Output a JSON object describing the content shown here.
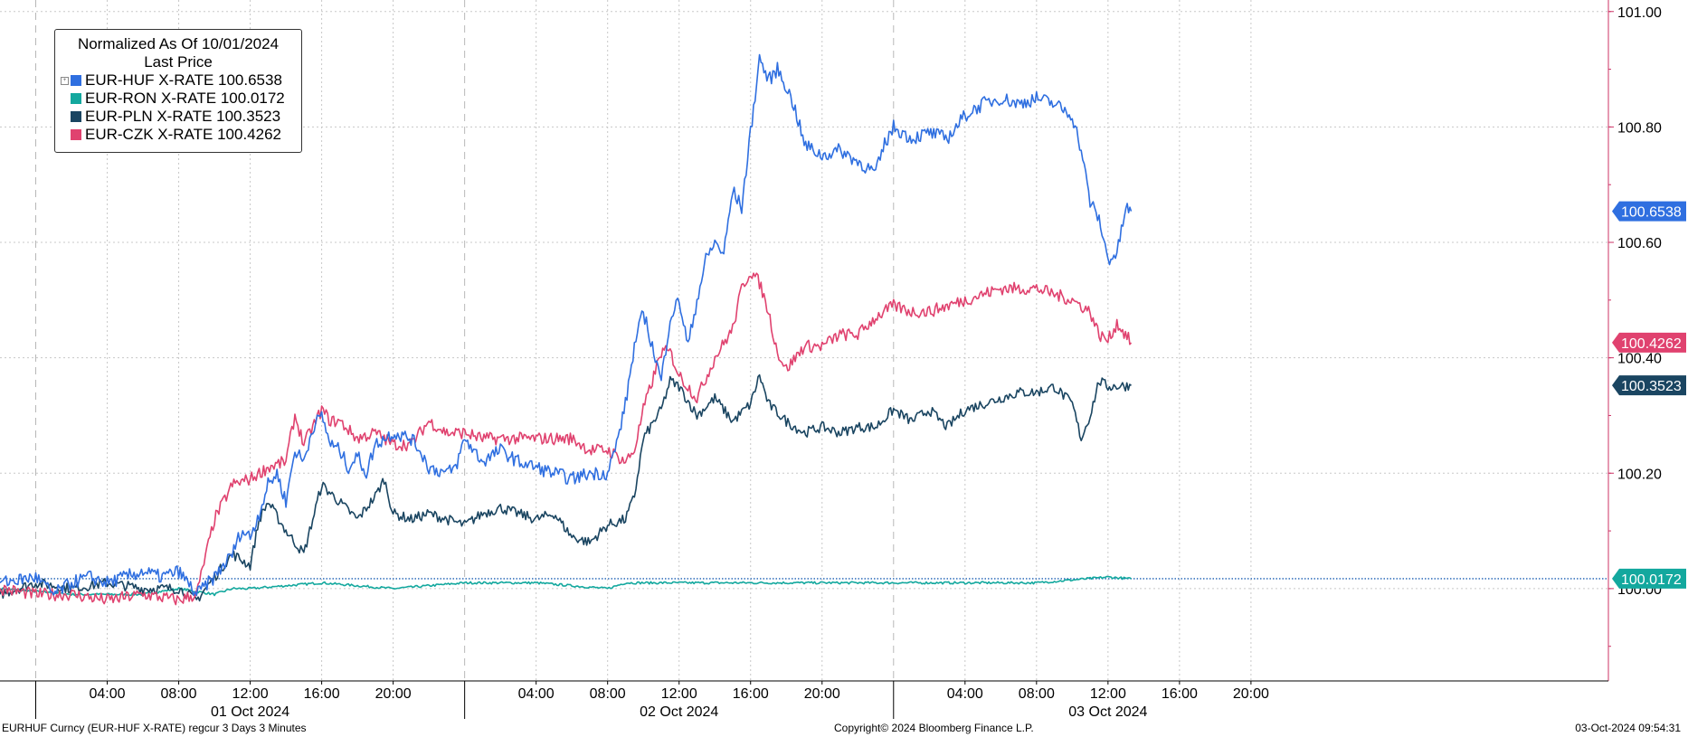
{
  "chart_data": {
    "type": "line",
    "legend": {
      "title": "Normalized As Of 10/01/2024",
      "subtitle": "Last Price",
      "entries": [
        {
          "label": "EUR-HUF X-RATE 100.6538",
          "color": "#2f6fe0"
        },
        {
          "label": "EUR-RON X-RATE 100.0172",
          "color": "#13a89e"
        },
        {
          "label": "EUR-PLN X-RATE 100.3523",
          "color": "#1a4561"
        },
        {
          "label": "EUR-CZK X-RATE 100.4262",
          "color": "#e0426f"
        }
      ],
      "placement": "top-left"
    },
    "y_axis": {
      "side": "right",
      "ylim": [
        99.84,
        101.02
      ],
      "ticks": [
        100.0,
        100.2,
        100.4,
        100.6,
        100.8,
        101.0
      ],
      "tick_labels": [
        "100.00",
        "100.20",
        "100.40",
        "100.60",
        "100.80",
        "101.00"
      ]
    },
    "x_axis": {
      "unit": "hours since 00:00 01 Oct 2024",
      "xlim": [
        -2,
        88
      ],
      "time_ticks": [
        {
          "x": 4,
          "label": "04:00"
        },
        {
          "x": 8,
          "label": "08:00"
        },
        {
          "x": 12,
          "label": "12:00"
        },
        {
          "x": 16,
          "label": "16:00"
        },
        {
          "x": 20,
          "label": "20:00"
        },
        {
          "x": 28,
          "label": "04:00"
        },
        {
          "x": 32,
          "label": "08:00"
        },
        {
          "x": 36,
          "label": "12:00"
        },
        {
          "x": 40,
          "label": "16:00"
        },
        {
          "x": 44,
          "label": "20:00"
        },
        {
          "x": 52,
          "label": "04:00"
        },
        {
          "x": 56,
          "label": "08:00"
        },
        {
          "x": 60,
          "label": "12:00"
        },
        {
          "x": 64,
          "label": "16:00"
        },
        {
          "x": 68,
          "label": "20:00"
        }
      ],
      "day_labels": [
        {
          "x": 12,
          "label": "01 Oct 2024"
        },
        {
          "x": 36,
          "label": "02 Oct 2024"
        },
        {
          "x": 60,
          "label": "03 Oct 2024"
        }
      ],
      "day_boundaries": [
        0,
        24,
        48
      ]
    },
    "grid": true,
    "reference_line": {
      "series": "EUR-RON X-RATE",
      "value": 100.0172,
      "style": "dotted"
    },
    "series": [
      {
        "name": "EUR-HUF X-RATE",
        "color": "#2f6fe0",
        "last_value": 100.6538,
        "last_label": "100.6538",
        "points": [
          [
            -2,
            100.01
          ],
          [
            0,
            100.02
          ],
          [
            1,
            99.99
          ],
          [
            2,
            100.01
          ],
          [
            3,
            100.02
          ],
          [
            4,
            100.01
          ],
          [
            5,
            100.02
          ],
          [
            6,
            100.03
          ],
          [
            7,
            100.02
          ],
          [
            8,
            100.03
          ],
          [
            9,
            99.99
          ],
          [
            10,
            100.02
          ],
          [
            10.5,
            100.04
          ],
          [
            11,
            100.06
          ],
          [
            11.5,
            100.1
          ],
          [
            12,
            100.09
          ],
          [
            12.5,
            100.13
          ],
          [
            13,
            100.18
          ],
          [
            13.5,
            100.2
          ],
          [
            14,
            100.15
          ],
          [
            14.5,
            100.24
          ],
          [
            15,
            100.22
          ],
          [
            15.5,
            100.28
          ],
          [
            16,
            100.3
          ],
          [
            16.5,
            100.25
          ],
          [
            17,
            100.24
          ],
          [
            17.5,
            100.21
          ],
          [
            18,
            100.23
          ],
          [
            18.5,
            100.2
          ],
          [
            19,
            100.25
          ],
          [
            20,
            100.27
          ],
          [
            21,
            100.26
          ],
          [
            21.5,
            100.24
          ],
          [
            22,
            100.21
          ],
          [
            23,
            100.2
          ],
          [
            23.5,
            100.21
          ],
          [
            24,
            100.26
          ],
          [
            25,
            100.22
          ],
          [
            26,
            100.24
          ],
          [
            27,
            100.22
          ],
          [
            28,
            100.21
          ],
          [
            29,
            100.2
          ],
          [
            30,
            100.19
          ],
          [
            31,
            100.2
          ],
          [
            32,
            100.2
          ],
          [
            32.5,
            100.25
          ],
          [
            33,
            100.32
          ],
          [
            33.5,
            100.42
          ],
          [
            34,
            100.48
          ],
          [
            34.5,
            100.42
          ],
          [
            35,
            100.36
          ],
          [
            35.5,
            100.47
          ],
          [
            36,
            100.5
          ],
          [
            36.5,
            100.42
          ],
          [
            37,
            100.5
          ],
          [
            37.5,
            100.57
          ],
          [
            38,
            100.6
          ],
          [
            38.5,
            100.58
          ],
          [
            39,
            100.69
          ],
          [
            39.5,
            100.66
          ],
          [
            40,
            100.79
          ],
          [
            40.5,
            100.92
          ],
          [
            41,
            100.88
          ],
          [
            41.5,
            100.9
          ],
          [
            42,
            100.87
          ],
          [
            42.5,
            100.83
          ],
          [
            43,
            100.77
          ],
          [
            44,
            100.75
          ],
          [
            45,
            100.76
          ],
          [
            46,
            100.74
          ],
          [
            47,
            100.72
          ],
          [
            47.5,
            100.77
          ],
          [
            48,
            100.8
          ],
          [
            49,
            100.78
          ],
          [
            50,
            100.79
          ],
          [
            51,
            100.78
          ],
          [
            52,
            100.82
          ],
          [
            53,
            100.84
          ],
          [
            54,
            100.85
          ],
          [
            55,
            100.84
          ],
          [
            56,
            100.85
          ],
          [
            57,
            100.84
          ],
          [
            58,
            100.82
          ],
          [
            58.5,
            100.76
          ],
          [
            59,
            100.67
          ],
          [
            59.5,
            100.64
          ],
          [
            60,
            100.57
          ],
          [
            60.5,
            100.58
          ],
          [
            61,
            100.66
          ],
          [
            61.3,
            100.654
          ]
        ]
      },
      {
        "name": "EUR-RON X-RATE",
        "color": "#13a89e",
        "last_value": 100.0172,
        "last_label": "100.0172",
        "points": [
          [
            -2,
            100.0
          ],
          [
            2,
            99.99
          ],
          [
            6,
            99.99
          ],
          [
            8,
            100.0
          ],
          [
            10,
            99.99
          ],
          [
            11,
            100.0
          ],
          [
            12,
            100.0
          ],
          [
            16,
            100.01
          ],
          [
            20,
            100.0
          ],
          [
            24,
            100.01
          ],
          [
            28,
            100.01
          ],
          [
            32,
            100.0
          ],
          [
            33,
            100.01
          ],
          [
            36,
            100.01
          ],
          [
            40,
            100.01
          ],
          [
            44,
            100.01
          ],
          [
            48,
            100.01
          ],
          [
            52,
            100.01
          ],
          [
            56,
            100.01
          ],
          [
            60,
            100.02
          ],
          [
            61.3,
            100.017
          ]
        ]
      },
      {
        "name": "EUR-PLN X-RATE",
        "color": "#1a4561",
        "last_value": 100.3523,
        "last_label": "100.3523",
        "points": [
          [
            -2,
            99.99
          ],
          [
            0,
            100.01
          ],
          [
            2,
            100.0
          ],
          [
            4,
            100.01
          ],
          [
            6,
            100.0
          ],
          [
            8,
            100.0
          ],
          [
            9,
            99.98
          ],
          [
            10,
            100.02
          ],
          [
            11,
            100.06
          ],
          [
            12,
            100.04
          ],
          [
            12.5,
            100.12
          ],
          [
            13,
            100.15
          ],
          [
            14,
            100.1
          ],
          [
            15,
            100.06
          ],
          [
            16,
            100.18
          ],
          [
            17,
            100.15
          ],
          [
            18,
            100.12
          ],
          [
            19,
            100.16
          ],
          [
            19.5,
            100.19
          ],
          [
            20,
            100.13
          ],
          [
            21,
            100.12
          ],
          [
            22,
            100.13
          ],
          [
            23,
            100.12
          ],
          [
            24,
            100.11
          ],
          [
            25,
            100.13
          ],
          [
            26,
            100.14
          ],
          [
            27,
            100.13
          ],
          [
            28,
            100.12
          ],
          [
            29,
            100.13
          ],
          [
            30,
            100.09
          ],
          [
            31,
            100.08
          ],
          [
            32,
            100.11
          ],
          [
            33,
            100.12
          ],
          [
            33.5,
            100.16
          ],
          [
            34,
            100.26
          ],
          [
            35,
            100.31
          ],
          [
            35.5,
            100.36
          ],
          [
            36,
            100.35
          ],
          [
            37,
            100.3
          ],
          [
            38,
            100.33
          ],
          [
            39,
            100.29
          ],
          [
            40,
            100.32
          ],
          [
            40.5,
            100.37
          ],
          [
            41,
            100.32
          ],
          [
            42,
            100.29
          ],
          [
            43,
            100.27
          ],
          [
            44,
            100.28
          ],
          [
            45,
            100.27
          ],
          [
            46,
            100.28
          ],
          [
            47,
            100.28
          ],
          [
            48,
            100.31
          ],
          [
            49,
            100.29
          ],
          [
            50,
            100.31
          ],
          [
            51,
            100.28
          ],
          [
            52,
            100.31
          ],
          [
            53,
            100.32
          ],
          [
            54,
            100.33
          ],
          [
            55,
            100.34
          ],
          [
            56,
            100.34
          ],
          [
            57,
            100.35
          ],
          [
            58,
            100.32
          ],
          [
            58.5,
            100.26
          ],
          [
            59,
            100.3
          ],
          [
            59.5,
            100.36
          ],
          [
            60,
            100.35
          ],
          [
            61.3,
            100.352
          ]
        ]
      },
      {
        "name": "EUR-CZK X-RATE",
        "color": "#e0426f",
        "last_value": 100.4262,
        "last_label": "100.4262",
        "points": [
          [
            -2,
            100.0
          ],
          [
            0,
            99.99
          ],
          [
            2,
            99.99
          ],
          [
            4,
            99.98
          ],
          [
            6,
            99.99
          ],
          [
            8,
            99.98
          ],
          [
            9,
            99.99
          ],
          [
            10,
            100.12
          ],
          [
            11,
            100.18
          ],
          [
            12,
            100.19
          ],
          [
            13,
            100.21
          ],
          [
            14,
            100.22
          ],
          [
            14.5,
            100.3
          ],
          [
            15,
            100.25
          ],
          [
            16,
            100.31
          ],
          [
            16.5,
            100.29
          ],
          [
            17,
            100.29
          ],
          [
            18,
            100.26
          ],
          [
            19,
            100.27
          ],
          [
            20,
            100.25
          ],
          [
            21,
            100.25
          ],
          [
            22,
            100.29
          ],
          [
            23,
            100.27
          ],
          [
            24,
            100.27
          ],
          [
            25,
            100.26
          ],
          [
            26,
            100.26
          ],
          [
            27,
            100.26
          ],
          [
            28,
            100.26
          ],
          [
            29,
            100.26
          ],
          [
            30,
            100.26
          ],
          [
            31,
            100.24
          ],
          [
            32,
            100.24
          ],
          [
            33,
            100.22
          ],
          [
            33.5,
            100.24
          ],
          [
            34,
            100.31
          ],
          [
            35,
            100.41
          ],
          [
            35.5,
            100.41
          ],
          [
            36,
            100.37
          ],
          [
            37,
            100.33
          ],
          [
            38,
            100.4
          ],
          [
            39,
            100.45
          ],
          [
            39.5,
            100.52
          ],
          [
            40,
            100.55
          ],
          [
            40.5,
            100.53
          ],
          [
            41,
            100.48
          ],
          [
            41.5,
            100.41
          ],
          [
            42,
            100.38
          ],
          [
            43,
            100.42
          ],
          [
            44,
            100.42
          ],
          [
            45,
            100.44
          ],
          [
            46,
            100.44
          ],
          [
            47,
            100.47
          ],
          [
            48,
            100.49
          ],
          [
            49,
            100.48
          ],
          [
            50,
            100.48
          ],
          [
            51,
            100.49
          ],
          [
            52,
            100.5
          ],
          [
            53,
            100.51
          ],
          [
            54,
            100.52
          ],
          [
            55,
            100.52
          ],
          [
            56,
            100.52
          ],
          [
            57,
            100.51
          ],
          [
            58,
            100.5
          ],
          [
            59,
            100.48
          ],
          [
            59.5,
            100.44
          ],
          [
            60,
            100.43
          ],
          [
            60.5,
            100.46
          ],
          [
            61.3,
            100.426
          ]
        ]
      }
    ]
  },
  "footer": {
    "left": "EURHUF Curncy (EUR-HUF X-RATE) regcur 3 Days 3 Minutes",
    "center": "Copyright© 2024 Bloomberg Finance L.P.",
    "right": "03-Oct-2024 09:54:31"
  }
}
